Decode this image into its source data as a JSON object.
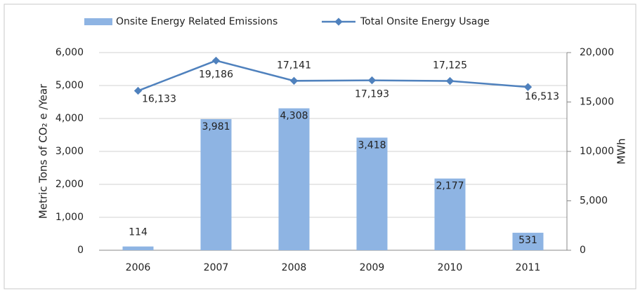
{
  "chart_data": {
    "type": "bar",
    "categories": [
      "2006",
      "2007",
      "2008",
      "2009",
      "2010",
      "2011"
    ],
    "series": [
      {
        "name": "Onsite Energy Related Emissions",
        "type": "bar",
        "color": "#8eb4e3",
        "values": [
          114,
          3981,
          4308,
          3418,
          2177,
          531
        ],
        "value_labels": [
          "114",
          "3,981",
          "4,308",
          "3,418",
          "2,177",
          "531"
        ]
      },
      {
        "name": "Total Onsite Energy Usage",
        "type": "line",
        "axis": "y2",
        "color": "#4f81bd",
        "values": [
          16133,
          19186,
          17141,
          17193,
          17125,
          16513
        ],
        "value_labels": [
          "16,133",
          "19,186",
          "17,141",
          "17,193",
          "17,125",
          "16,513"
        ]
      }
    ],
    "ylabel": "Metric Tons of CO₂ e /Year",
    "y2label": "MWh",
    "ylim": [
      0,
      6000
    ],
    "yticks": [
      0,
      {
        "value": 1000,
        "label": "1,000"
      },
      {
        "value": 2000,
        "label": "2,000"
      },
      {
        "value": 3000,
        "label": "3,000"
      },
      {
        "value": 4000,
        "label": "4,000"
      },
      {
        "value": 5000,
        "label": "5,000"
      },
      {
        "value": 6000,
        "label": "6,000"
      }
    ],
    "y2lim": [
      0,
      20000
    ],
    "y2ticks": [
      0,
      {
        "value": 5000,
        "label": "5,000"
      },
      {
        "value": 10000,
        "label": "10,000"
      },
      {
        "value": 15000,
        "label": "15,000"
      },
      {
        "value": 20000,
        "label": "20,000"
      }
    ],
    "grid": true,
    "legend": "top"
  }
}
